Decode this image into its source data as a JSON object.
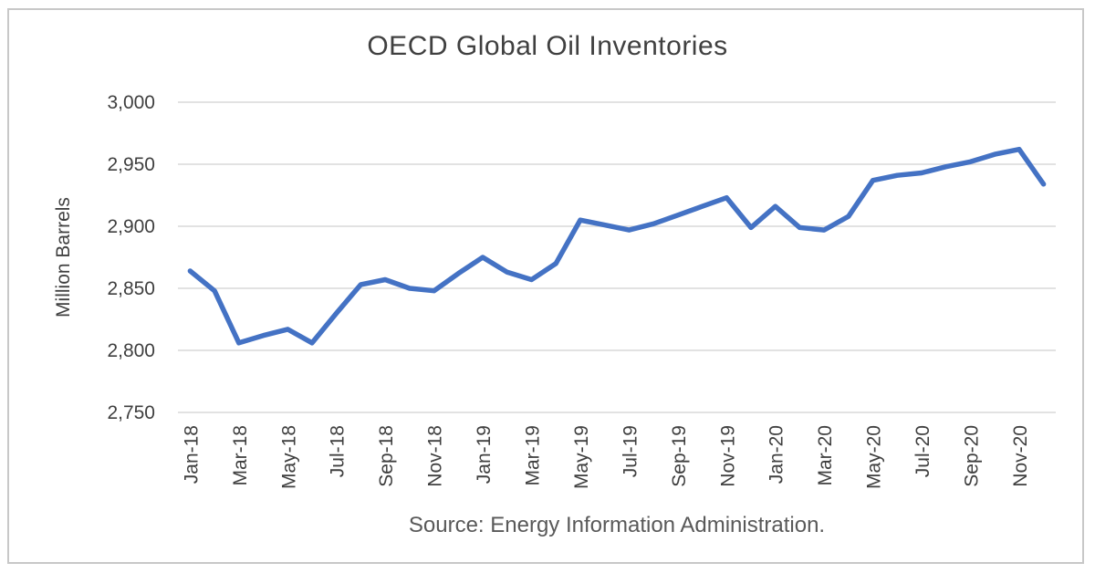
{
  "title": "OECD Global Oil Inventories",
  "source_note": "Source: Energy Information Administration.",
  "colors": {
    "line": "#4472C4",
    "gridline": "#D9D9D9",
    "title_text": "#404040",
    "axis_text": "#3F3F3F",
    "source_text": "#595959",
    "frame_border": "#C8C8C8"
  },
  "chart_data": {
    "type": "line",
    "title": "OECD Global Oil Inventories",
    "xlabel": "",
    "ylabel": "Million Barrels",
    "x": [
      "Jan-18",
      "Feb-18",
      "Mar-18",
      "Apr-18",
      "May-18",
      "Jun-18",
      "Jul-18",
      "Aug-18",
      "Sep-18",
      "Oct-18",
      "Nov-18",
      "Dec-18",
      "Jan-19",
      "Feb-19",
      "Mar-19",
      "Apr-19",
      "May-19",
      "Jun-19",
      "Jul-19",
      "Aug-19",
      "Sep-19",
      "Oct-19",
      "Nov-19",
      "Dec-19",
      "Jan-20",
      "Feb-20",
      "Mar-20",
      "Apr-20",
      "May-20",
      "Jun-20",
      "Jul-20",
      "Aug-20",
      "Sep-20",
      "Oct-20",
      "Nov-20",
      "Dec-20"
    ],
    "series": [
      {
        "name": "OECD global oil inventories (million barrels)",
        "values": [
          2864,
          2848,
          2806,
          2812,
          2817,
          2806,
          2830,
          2853,
          2857,
          2850,
          2848,
          2862,
          2875,
          2863,
          2857,
          2870,
          2905,
          2901,
          2897,
          2902,
          2909,
          2916,
          2923,
          2899,
          2916,
          2899,
          2897,
          2908,
          2937,
          2941,
          2943,
          2948,
          2952,
          2958,
          2962,
          2934
        ]
      }
    ],
    "x_tick_every": 2,
    "y_ticks": [
      3000,
      2950,
      2900,
      2850,
      2800,
      2750
    ],
    "y_tick_labels": [
      "3,000",
      "2,950",
      "2,900",
      "2,850",
      "2,800",
      "2,750"
    ],
    "ylim": [
      2750,
      3000
    ],
    "grid": "horizontal-only",
    "legend": "none",
    "line_width": 5.5
  }
}
